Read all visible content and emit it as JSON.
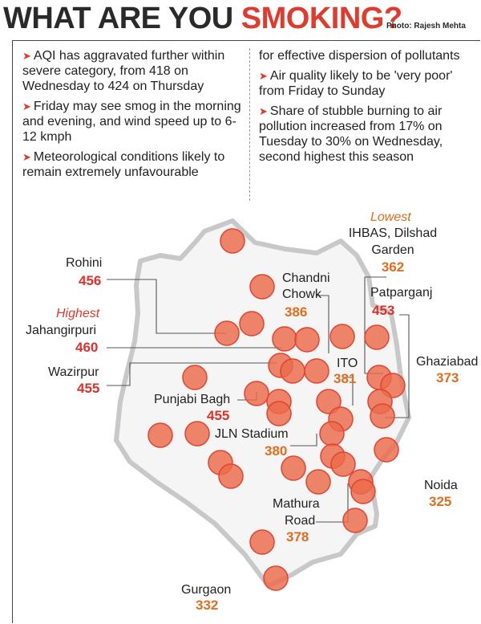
{
  "headline": {
    "part1": "WHAT ARE YOU ",
    "part2": "SMOKING?"
  },
  "photo_credit": "Photo: Rajesh Mehta",
  "bullets_left": [
    "AQI has aggravated further within severe category, from 418 on Wednesday to 424 on Thursday",
    "Friday may see smog in the morning and evening, and wind speed up to 6-12 kmph",
    "Meteorological conditions likely to remain extremely unfavourable"
  ],
  "bullets_right": [
    "for effective dispersion of pollutants",
    "Air quality likely to be 'very poor' from Friday to Sunday",
    "Share of stubble burning to air pollution increased from 17% on Tuesday to 30% on Wednesday, second highest this season"
  ],
  "map_labels": {
    "rohini": {
      "name": "Rohini",
      "value": "456"
    },
    "jahangirpuri": {
      "tag": "Highest",
      "name": "Jahangirpuri",
      "value": "460"
    },
    "wazirpur": {
      "name": "Wazirpur",
      "value": "455"
    },
    "punjabi_bagh": {
      "name": "Punjabi Bagh",
      "value": "455"
    },
    "chandni_chowk": {
      "name_line1": "Chandni",
      "name_line2": "Chowk",
      "value": "386"
    },
    "ihbas": {
      "tag": "Lowest",
      "name_line1": "IHBAS, Dilshad",
      "name_line2": "Garden",
      "value": "362"
    },
    "patparganj": {
      "name": "Patparganj",
      "value": "453"
    },
    "ito": {
      "name": "ITO",
      "value": "381"
    },
    "ghaziabad": {
      "name": "Ghaziabad",
      "value": "373"
    },
    "jln_stadium": {
      "name": "JLN Stadium",
      "value": "380"
    },
    "noida": {
      "name": "Noida",
      "value": "325"
    },
    "mathura_road": {
      "name_line1": "Mathura",
      "name_line2": "Road",
      "value": "378"
    },
    "gurgaon": {
      "name": "Gurgaon",
      "value": "332"
    }
  },
  "colors": {
    "region_fill": "#f5f5f5",
    "region_border": "#c8c8c8",
    "marker_fill": "#ec6a4a",
    "marker_stroke": "#e04431",
    "severe_value": "#e0302a",
    "very_poor_value": "#e46d1c",
    "highest_tag": "#e23a2c",
    "lowest_tag": "#e46d1c"
  }
}
